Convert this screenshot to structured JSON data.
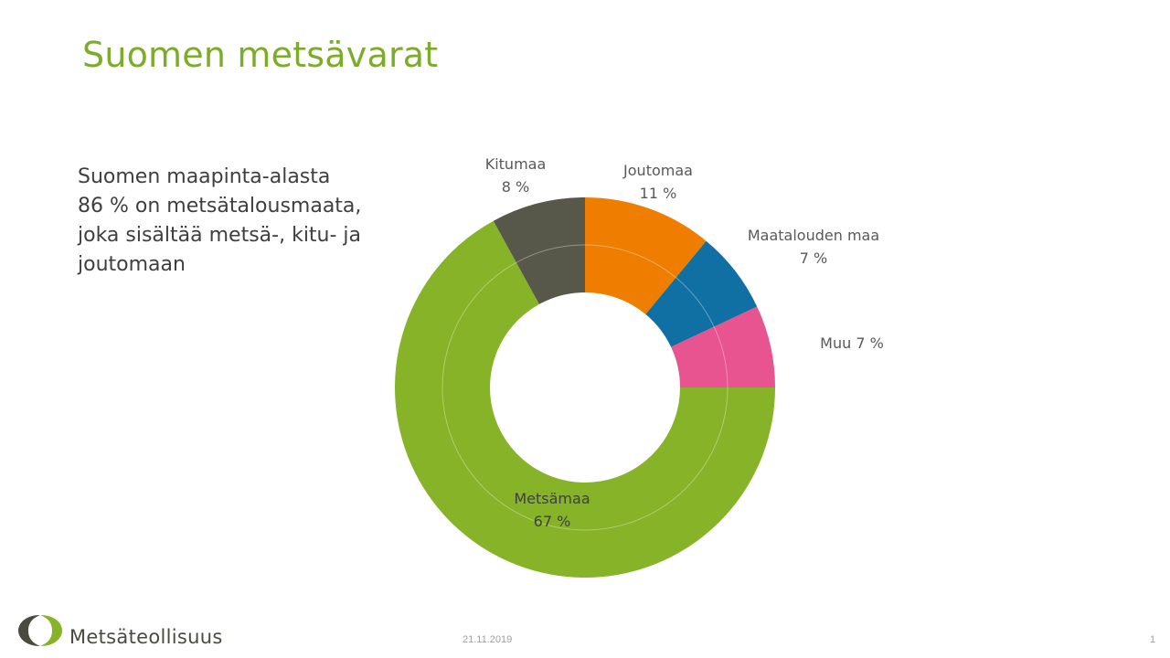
{
  "slide": {
    "title": "Suomen metsävarat",
    "body_lines": [
      "Suomen maapinta-alasta",
      "86 % on metsätalousmaata,",
      "joka sisältää metsä-, kitu- ja",
      "joutomaan"
    ],
    "footer_logo_text": "Metsäteollisuus",
    "date": "21.11.2019",
    "page_number": "1"
  },
  "chart_data": {
    "type": "pie",
    "variant": "doughnut",
    "title": "",
    "slices": [
      {
        "label": "Joutomaa",
        "value": 11,
        "value_label": "11 %",
        "color": "#ef7d00"
      },
      {
        "label": "Maatalouden maa",
        "value": 7,
        "value_label": "7 %",
        "color": "#1070a3"
      },
      {
        "label": "Muu",
        "value": 7,
        "value_label": "7 %",
        "color": "#e8548f"
      },
      {
        "label": "Metsämaa",
        "value": 67,
        "value_label": "67 %",
        "color": "#86b327"
      },
      {
        "label": "Kitumaa",
        "value": 8,
        "value_label": "8 %",
        "color": "#57574a"
      }
    ],
    "start": "12 o'clock, clockwise"
  }
}
